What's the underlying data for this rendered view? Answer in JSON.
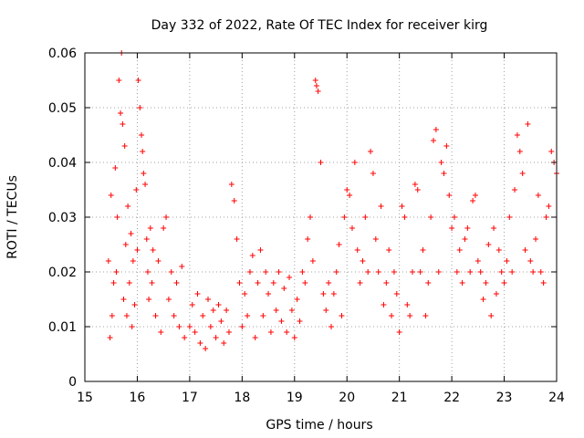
{
  "chart_data": {
    "type": "scatter",
    "title": "Day 332 of 2022, Rate Of TEC Index for receiver kirg",
    "xlabel": "GPS time / hours",
    "ylabel": "ROTI / TECUs",
    "xlim": [
      15,
      24
    ],
    "ylim": [
      0,
      0.06
    ],
    "x_ticks": [
      15,
      16,
      17,
      18,
      19,
      20,
      21,
      22,
      23,
      24
    ],
    "y_ticks": [
      0,
      0.01,
      0.02,
      0.03,
      0.04,
      0.05,
      0.06
    ],
    "x_tick_labels": [
      "15",
      "16",
      "17",
      "18",
      "19",
      "20",
      "21",
      "22",
      "23",
      "24"
    ],
    "y_tick_labels": [
      "0",
      "0.01",
      "0.02",
      "0.03",
      "0.04",
      "0.05",
      "0.06"
    ],
    "grid": true,
    "marker": "+",
    "series": [
      {
        "name": "ROTI",
        "color": "#ff0000",
        "x": [
          15.45,
          15.48,
          15.5,
          15.52,
          15.55,
          15.58,
          15.6,
          15.62,
          15.65,
          15.68,
          15.7,
          15.72,
          15.74,
          15.76,
          15.78,
          15.8,
          15.82,
          15.85,
          15.88,
          15.9,
          15.92,
          15.95,
          15.98,
          16.0,
          16.02,
          16.05,
          16.08,
          16.1,
          16.12,
          16.15,
          16.18,
          16.2,
          16.22,
          16.25,
          16.28,
          16.3,
          16.35,
          16.4,
          16.45,
          16.5,
          16.55,
          16.6,
          16.65,
          16.7,
          16.75,
          16.8,
          16.85,
          16.9,
          17.0,
          17.05,
          17.1,
          17.15,
          17.2,
          17.25,
          17.3,
          17.35,
          17.4,
          17.45,
          17.5,
          17.55,
          17.6,
          17.65,
          17.7,
          17.75,
          17.8,
          17.85,
          17.9,
          17.95,
          18.0,
          18.05,
          18.1,
          18.15,
          18.2,
          18.25,
          18.3,
          18.35,
          18.4,
          18.45,
          18.5,
          18.55,
          18.6,
          18.65,
          18.7,
          18.75,
          18.8,
          18.85,
          18.9,
          18.95,
          19.0,
          19.05,
          19.1,
          19.15,
          19.2,
          19.25,
          19.3,
          19.35,
          19.4,
          19.42,
          19.45,
          19.5,
          19.55,
          19.6,
          19.65,
          19.7,
          19.75,
          19.8,
          19.85,
          19.9,
          19.95,
          20.0,
          20.05,
          20.1,
          20.15,
          20.2,
          20.25,
          20.3,
          20.35,
          20.4,
          20.45,
          20.5,
          20.55,
          20.6,
          20.65,
          20.7,
          20.75,
          20.8,
          20.85,
          20.9,
          20.95,
          21.0,
          21.05,
          21.1,
          21.15,
          21.2,
          21.25,
          21.3,
          21.35,
          21.4,
          21.45,
          21.5,
          21.55,
          21.6,
          21.65,
          21.7,
          21.75,
          21.8,
          21.85,
          21.9,
          21.95,
          22.0,
          22.05,
          22.1,
          22.15,
          22.2,
          22.25,
          22.3,
          22.35,
          22.4,
          22.45,
          22.5,
          22.55,
          22.6,
          22.65,
          22.7,
          22.75,
          22.8,
          22.85,
          22.9,
          22.95,
          23.0,
          23.05,
          23.1,
          23.15,
          23.2,
          23.25,
          23.3,
          23.35,
          23.4,
          23.45,
          23.5,
          23.55,
          23.6,
          23.65,
          23.7,
          23.75,
          23.8,
          23.85,
          23.9,
          23.95,
          24.0
        ],
        "y": [
          0.022,
          0.008,
          0.034,
          0.012,
          0.018,
          0.039,
          0.02,
          0.03,
          0.055,
          0.049,
          0.06,
          0.047,
          0.015,
          0.043,
          0.025,
          0.012,
          0.032,
          0.018,
          0.027,
          0.01,
          0.022,
          0.014,
          0.035,
          0.024,
          0.055,
          0.05,
          0.045,
          0.042,
          0.038,
          0.036,
          0.026,
          0.02,
          0.015,
          0.028,
          0.018,
          0.024,
          0.012,
          0.022,
          0.009,
          0.028,
          0.03,
          0.015,
          0.02,
          0.012,
          0.018,
          0.01,
          0.021,
          0.008,
          0.01,
          0.014,
          0.009,
          0.016,
          0.007,
          0.012,
          0.006,
          0.015,
          0.01,
          0.013,
          0.008,
          0.014,
          0.011,
          0.007,
          0.013,
          0.009,
          0.036,
          0.033,
          0.026,
          0.018,
          0.01,
          0.016,
          0.012,
          0.02,
          0.023,
          0.008,
          0.018,
          0.024,
          0.012,
          0.02,
          0.016,
          0.009,
          0.018,
          0.013,
          0.02,
          0.011,
          0.017,
          0.009,
          0.019,
          0.013,
          0.008,
          0.015,
          0.011,
          0.02,
          0.018,
          0.026,
          0.03,
          0.022,
          0.055,
          0.054,
          0.053,
          0.04,
          0.016,
          0.013,
          0.018,
          0.01,
          0.016,
          0.02,
          0.025,
          0.012,
          0.03,
          0.035,
          0.034,
          0.028,
          0.04,
          0.024,
          0.018,
          0.022,
          0.03,
          0.02,
          0.042,
          0.038,
          0.026,
          0.02,
          0.032,
          0.014,
          0.018,
          0.024,
          0.012,
          0.02,
          0.016,
          0.009,
          0.032,
          0.03,
          0.014,
          0.012,
          0.02,
          0.036,
          0.035,
          0.02,
          0.024,
          0.012,
          0.018,
          0.03,
          0.044,
          0.046,
          0.02,
          0.04,
          0.038,
          0.043,
          0.034,
          0.028,
          0.03,
          0.02,
          0.024,
          0.018,
          0.026,
          0.028,
          0.02,
          0.033,
          0.034,
          0.022,
          0.02,
          0.015,
          0.018,
          0.025,
          0.012,
          0.028,
          0.016,
          0.024,
          0.02,
          0.018,
          0.022,
          0.03,
          0.02,
          0.035,
          0.045,
          0.042,
          0.038,
          0.024,
          0.047,
          0.022,
          0.02,
          0.026,
          0.034,
          0.02,
          0.018,
          0.03,
          0.032,
          0.042,
          0.04,
          0.038
        ]
      }
    ]
  }
}
